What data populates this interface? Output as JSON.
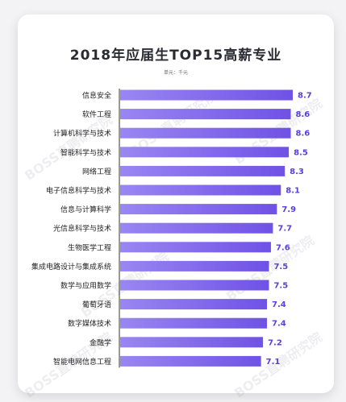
{
  "watermark": "BOSS直聘研究院",
  "chart_data": {
    "type": "bar",
    "orientation": "horizontal",
    "title": "2018年应届生TOP15高薪专业",
    "unit_label": "单元：千元",
    "categories": [
      "信息安全",
      "软件工程",
      "计算机科学与技术",
      "智能科学与技术",
      "网络工程",
      "电子信息科学与技术",
      "信息与计算科学",
      "光信息科学与技术",
      "生物医学工程",
      "集成电路设计与集成系统",
      "数学与应用数学",
      "葡萄牙语",
      "数字媒体技术",
      "金融学",
      "智能电网信息工程"
    ],
    "values": [
      8.7,
      8.6,
      8.6,
      8.5,
      8.3,
      8.1,
      7.9,
      7.7,
      7.6,
      7.5,
      7.5,
      7.4,
      7.4,
      7.2,
      7.1
    ],
    "value_labels": [
      "8.7",
      "8.6",
      "8.6",
      "8.5",
      "8.3",
      "8.1",
      "7.9",
      "7.7",
      "7.6",
      "7.5",
      "7.5",
      "7.4",
      "7.4",
      "7.2",
      "7.1"
    ],
    "xlim": [
      0,
      8.7
    ],
    "colors": {
      "bar_left": "#9a86f2",
      "bar_right": "#6f52e6",
      "value_text": "#5a40d8",
      "axis": "#333333"
    },
    "grid": false,
    "legend": "none"
  }
}
